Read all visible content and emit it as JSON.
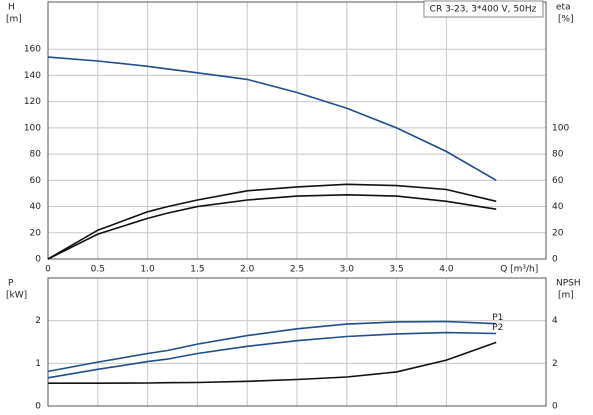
{
  "chart_data": [
    {
      "type": "line",
      "title": "CR 3-23, 3*400 V, 50Hz",
      "ylabel": "H",
      "yunit": "[m]",
      "y2label": "eta",
      "y2unit": "[%]",
      "xlabel": "Q [m³/h]",
      "x": [
        0,
        0.5,
        1,
        1.2,
        1.5,
        2,
        2.5,
        3,
        3.5,
        4,
        4.5
      ],
      "xlim": [
        0,
        5
      ],
      "xticks": [
        0,
        0.5,
        {
          "value": 1,
          "label": "1.0"
        },
        1.5,
        {
          "value": 2,
          "label": "2.0"
        },
        2.5,
        {
          "value": 3,
          "label": "3.0"
        },
        3.5,
        {
          "value": 4,
          "label": "4.0"
        }
      ],
      "ylim": [
        0,
        196
      ],
      "yticks": [
        0,
        20,
        40,
        60,
        80,
        100,
        120,
        140,
        160
      ],
      "y2lim": [
        0,
        196
      ],
      "y2ticks": [
        0,
        20,
        40,
        60,
        80,
        100
      ],
      "grid": true,
      "series": [
        {
          "color": "#1f4e8c",
          "values": [
            154,
            151,
            147,
            145,
            142,
            137,
            127,
            115,
            100,
            82,
            60
          ]
        },
        {
          "color": "#111111",
          "axis": "y2",
          "values": [
            0,
            22,
            36,
            40,
            45,
            52,
            55,
            57,
            56,
            53,
            44
          ]
        },
        {
          "color": "#111111",
          "axis": "y2",
          "values": [
            0,
            19,
            31,
            35,
            40,
            45,
            48,
            49,
            48,
            44,
            38
          ]
        }
      ]
    },
    {
      "type": "line",
      "ylabel": "P",
      "yunit": "[kW]",
      "y2label": "NPSH",
      "y2unit": "[m]",
      "x": [
        0,
        0.5,
        1,
        1.2,
        1.5,
        2,
        2.5,
        3,
        3.5,
        4,
        4.5
      ],
      "xlim": [
        0,
        5
      ],
      "xticks": [
        0,
        0.5,
        1,
        1.5,
        2,
        2.5,
        3,
        3.5,
        4
      ],
      "ylim": [
        0,
        3
      ],
      "yticks": [
        0,
        1,
        2
      ],
      "y2lim": [
        0,
        6
      ],
      "y2ticks": [
        0,
        2,
        4
      ],
      "grid": true,
      "series": [
        {
          "name": "P1",
          "color": "#1f4e8c",
          "values": [
            0.81,
            1.03,
            1.23,
            1.3,
            1.45,
            1.65,
            1.81,
            1.92,
            1.97,
            1.98,
            1.93
          ]
        },
        {
          "name": "P2",
          "color": "#1f4e8c",
          "values": [
            0.66,
            0.86,
            1.04,
            1.1,
            1.23,
            1.4,
            1.53,
            1.63,
            1.69,
            1.72,
            1.7
          ]
        },
        {
          "color": "#111111",
          "axis": "y2",
          "values": [
            1.07,
            1.07,
            1.08,
            1.09,
            1.1,
            1.16,
            1.24,
            1.36,
            1.6,
            2.15,
            2.98
          ]
        }
      ]
    }
  ]
}
